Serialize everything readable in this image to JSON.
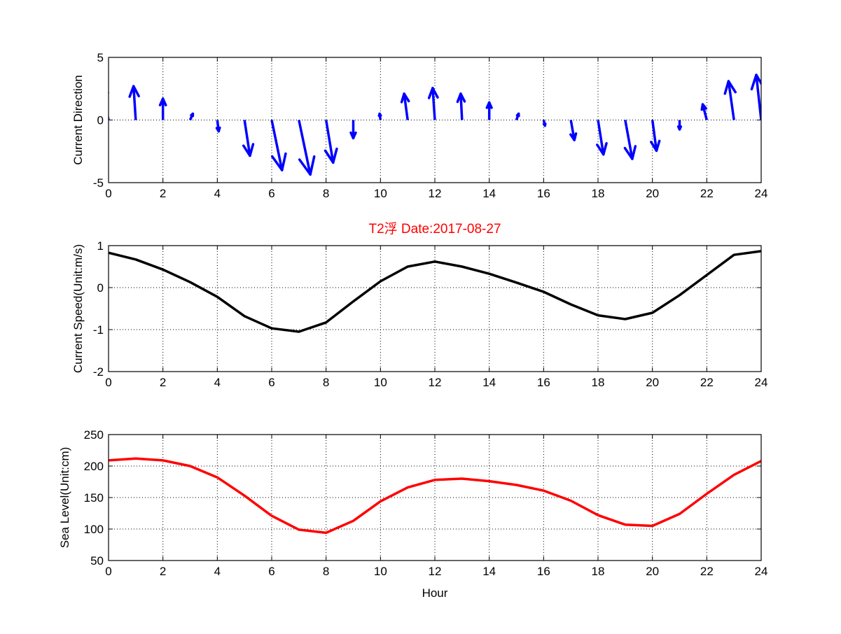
{
  "chart_data": [
    {
      "type": "quiver",
      "ylabel": "Current Direction",
      "xlabel": "",
      "xlim": [
        0,
        24
      ],
      "ylim": [
        -5,
        5
      ],
      "xticks": [
        0,
        2,
        4,
        6,
        8,
        10,
        12,
        14,
        16,
        18,
        20,
        22,
        24
      ],
      "yticks": [
        -5,
        0,
        5
      ],
      "grid": true,
      "color": "#0000ff",
      "x": [
        0,
        1,
        2,
        3,
        4,
        5,
        6,
        7,
        8,
        9,
        10,
        11,
        12,
        13,
        14,
        15,
        16,
        17,
        18,
        19,
        20,
        21,
        22,
        23,
        24
      ],
      "u": [
        -0.3,
        -0.08,
        0,
        0.1,
        0.05,
        0.2,
        0.38,
        0.42,
        0.26,
        0,
        -0.03,
        -0.13,
        -0.08,
        -0.05,
        0,
        0.08,
        0.05,
        0.13,
        0.2,
        0.26,
        0.15,
        0,
        -0.15,
        -0.2,
        -0.18
      ],
      "v": [
        3.0,
        2.7,
        1.7,
        0.5,
        -0.9,
        -2.85,
        -4.0,
        -4.35,
        -3.4,
        -1.45,
        0.5,
        2.1,
        2.55,
        2.1,
        1.4,
        0.5,
        -0.45,
        -1.6,
        -2.75,
        -3.1,
        -2.45,
        -0.75,
        1.25,
        3.1,
        3.6
      ]
    },
    {
      "type": "line",
      "title": "T2浮   Date:2017-08-27",
      "title_color": "#ff0000",
      "ylabel": "Current Speed(Unit:m/s)",
      "xlabel": "",
      "xlim": [
        0,
        24
      ],
      "ylim": [
        -2,
        1
      ],
      "xticks": [
        0,
        2,
        4,
        6,
        8,
        10,
        12,
        14,
        16,
        18,
        20,
        22,
        24
      ],
      "yticks": [
        -2,
        -1,
        0,
        1
      ],
      "grid": true,
      "color": "#000000",
      "x": [
        0,
        1,
        2,
        3,
        4,
        5,
        6,
        7,
        8,
        9,
        10,
        11,
        12,
        13,
        14,
        15,
        16,
        17,
        18,
        19,
        20,
        21,
        22,
        23,
        24
      ],
      "y": [
        0.83,
        0.67,
        0.43,
        0.13,
        -0.22,
        -0.68,
        -0.97,
        -1.05,
        -0.83,
        -0.33,
        0.15,
        0.5,
        0.62,
        0.5,
        0.33,
        0.12,
        -0.1,
        -0.4,
        -0.66,
        -0.75,
        -0.6,
        -0.18,
        0.3,
        0.78,
        0.87
      ]
    },
    {
      "type": "line",
      "ylabel": "Sea Level(Unit:cm)",
      "xlabel": "Hour",
      "xlim": [
        0,
        24
      ],
      "ylim": [
        50,
        250
      ],
      "xticks": [
        0,
        2,
        4,
        6,
        8,
        10,
        12,
        14,
        16,
        18,
        20,
        22,
        24
      ],
      "yticks": [
        50,
        100,
        150,
        200,
        250
      ],
      "grid": true,
      "color": "#ff0000",
      "x": [
        0,
        1,
        2,
        3,
        4,
        5,
        6,
        7,
        8,
        9,
        10,
        11,
        12,
        13,
        14,
        15,
        16,
        17,
        18,
        19,
        20,
        21,
        22,
        23,
        24
      ],
      "y": [
        209,
        212,
        209,
        200,
        182,
        153,
        121,
        99,
        94,
        113,
        144,
        166,
        178,
        180,
        176,
        170,
        161,
        145,
        122,
        107,
        105,
        124,
        156,
        186,
        208
      ]
    }
  ]
}
